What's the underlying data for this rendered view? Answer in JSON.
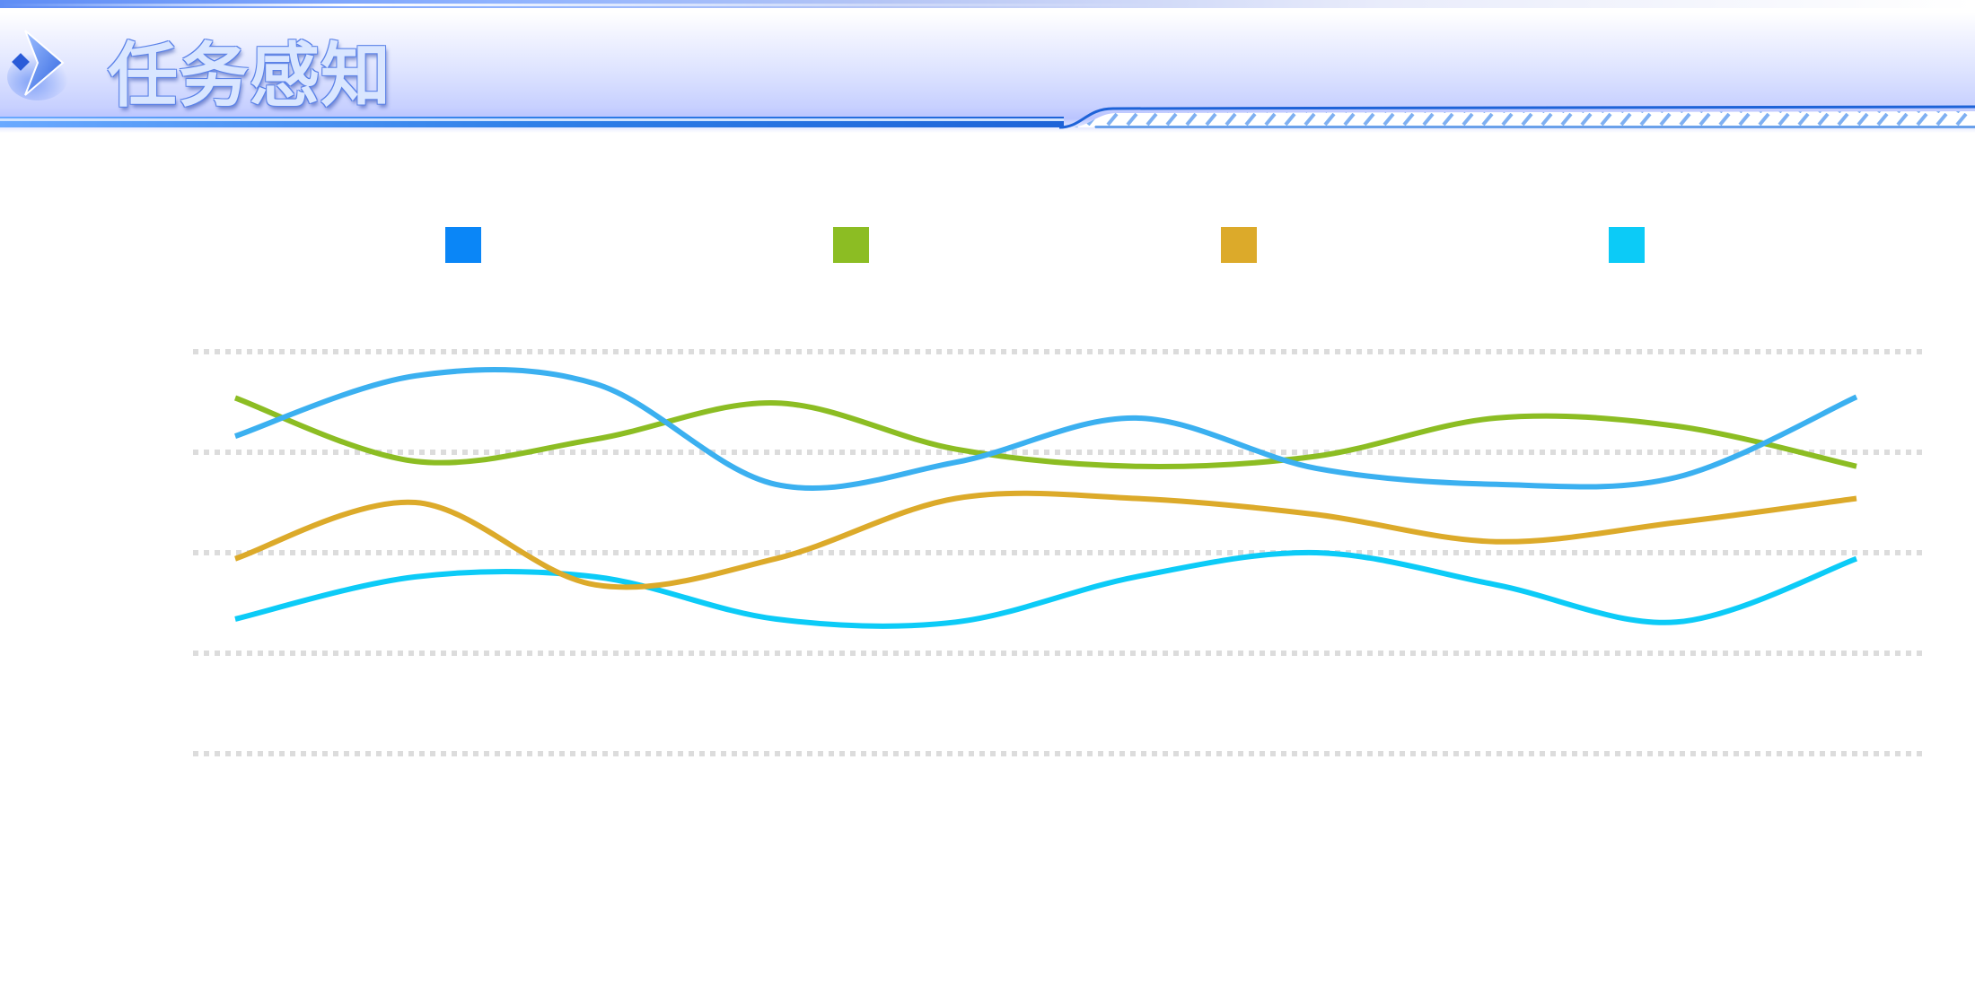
{
  "header": {
    "title": "任务感知"
  },
  "colors": {
    "series_1": "#0a86f7",
    "series_2": "#8cbd23",
    "series_3": "#dcaa2a",
    "series_4": "#0ccbf7",
    "grid": "#dcdcdc",
    "header_accent": "#1e63d8"
  },
  "chart_data": {
    "type": "line",
    "smooth": true,
    "x": [
      1,
      2,
      3,
      4,
      5,
      6,
      7,
      8,
      9,
      10
    ],
    "ylim": [
      0,
      5
    ],
    "grid": "horizontal-dotted",
    "legend_position": "top",
    "series": [
      {
        "key": "series_1",
        "values": [
          4.16,
          4.76,
          4.68,
          3.68,
          3.9,
          4.34,
          3.84,
          3.68,
          3.75,
          4.55
        ]
      },
      {
        "key": "series_2",
        "values": [
          4.54,
          3.91,
          4.13,
          4.49,
          4.03,
          3.86,
          3.96,
          4.34,
          4.26,
          3.86
        ]
      },
      {
        "key": "series_3",
        "values": [
          2.94,
          3.5,
          2.68,
          2.94,
          3.54,
          3.54,
          3.38,
          3.11,
          3.3,
          3.54
        ]
      },
      {
        "key": "series_4",
        "values": [
          2.34,
          2.76,
          2.76,
          2.34,
          2.31,
          2.76,
          3.0,
          2.68,
          2.31,
          2.94
        ]
      }
    ]
  }
}
